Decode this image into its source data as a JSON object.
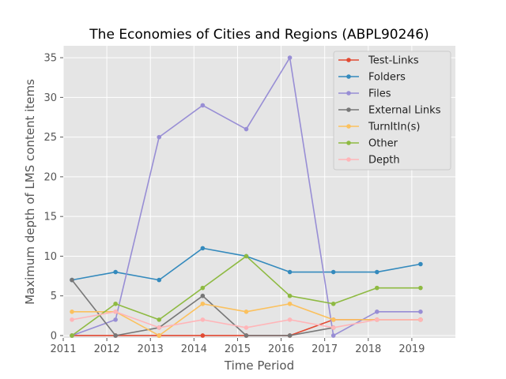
{
  "chart_data": {
    "type": "line",
    "title": "The Economies of Cities and Regions (ABPL90246)",
    "xlabel": "Time Period",
    "ylabel": "Maximum depth of LMS content items",
    "xlim": [
      2011,
      2020
    ],
    "ylim": [
      -0.3,
      36.5
    ],
    "x_ticks": [
      "2011",
      "2012",
      "2013",
      "2014",
      "2015",
      "2016",
      "2017",
      "2018",
      "2019"
    ],
    "y_ticks": [
      "0",
      "5",
      "10",
      "15",
      "20",
      "25",
      "30",
      "35"
    ],
    "grid": true,
    "legend_position": "top-right",
    "x": [
      2011.2,
      2012.2,
      2013.2,
      2014.2,
      2015.2,
      2016.2,
      2017.2,
      2018.2,
      2019.2
    ],
    "series": [
      {
        "name": "Test-Links",
        "color": "#E24A33",
        "values": [
          0,
          0,
          0,
          0,
          0,
          0,
          2,
          2,
          2
        ]
      },
      {
        "name": "Folders",
        "color": "#348ABD",
        "values": [
          7,
          8,
          7,
          11,
          10,
          8,
          8,
          8,
          9
        ]
      },
      {
        "name": "Files",
        "color": "#988ED5",
        "values": [
          0,
          2,
          25,
          29,
          26,
          35,
          0,
          3,
          3
        ]
      },
      {
        "name": "External Links",
        "color": "#777777",
        "values": [
          7,
          0,
          1,
          5,
          0,
          0,
          1,
          null,
          null
        ]
      },
      {
        "name": "TurnItIn(s)",
        "color": "#FBC15E",
        "values": [
          3,
          3,
          0,
          4,
          3,
          4,
          2,
          2,
          2
        ]
      },
      {
        "name": "Other",
        "color": "#8EBA42",
        "values": [
          0,
          4,
          2,
          6,
          10,
          5,
          4,
          6,
          6
        ]
      },
      {
        "name": "Depth",
        "color": "#FFB5B8",
        "values": [
          2,
          3,
          1,
          2,
          1,
          2,
          1,
          2,
          2
        ]
      }
    ]
  }
}
